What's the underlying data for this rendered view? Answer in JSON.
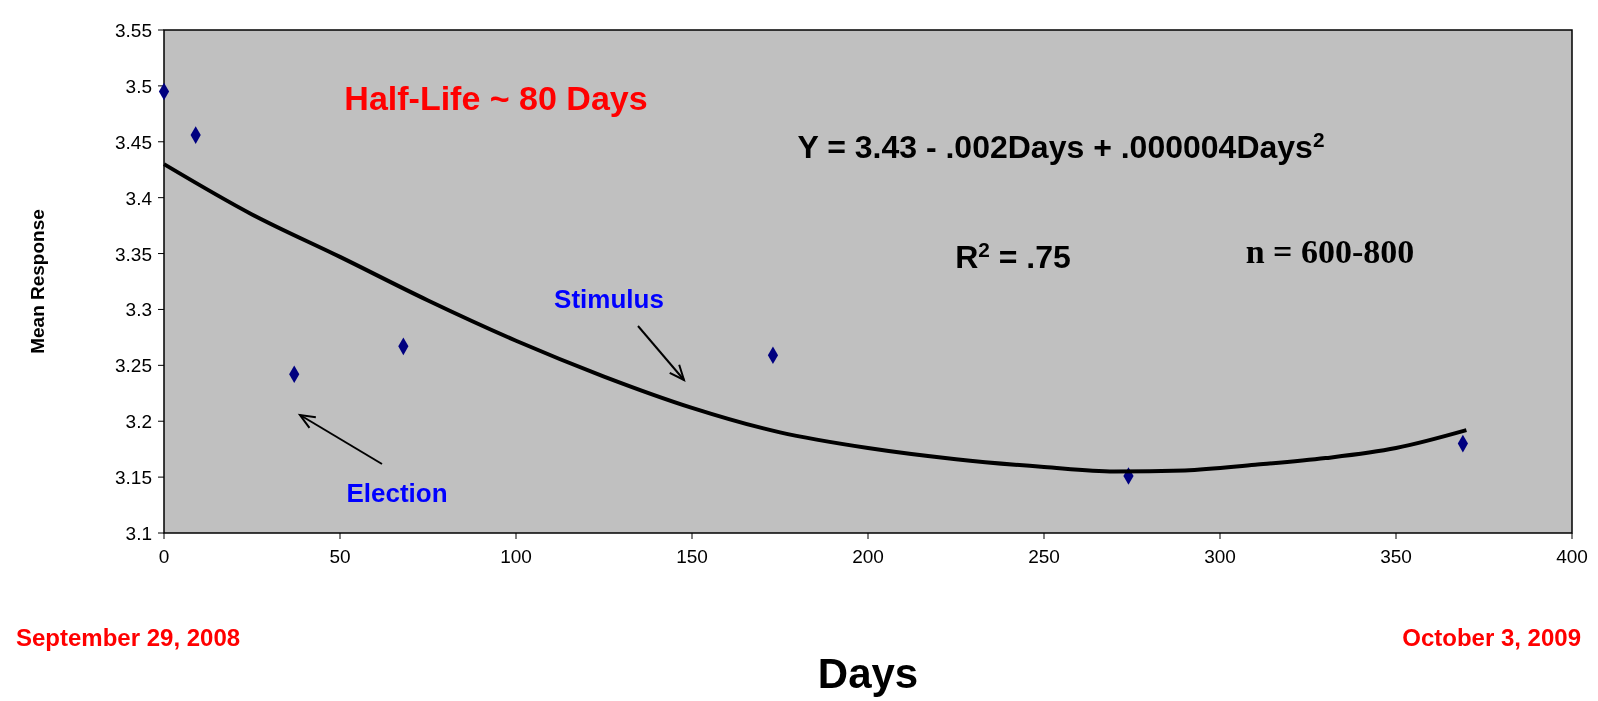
{
  "chart_data": {
    "type": "scatter",
    "xlabel": "Days",
    "ylabel": "Mean Response",
    "xlim": [
      0,
      400
    ],
    "xticks": [
      0,
      50,
      100,
      150,
      200,
      250,
      300,
      350,
      400
    ],
    "ylim": [
      3.1,
      3.55
    ],
    "yticks": [
      3.1,
      3.15,
      3.2,
      3.25,
      3.3,
      3.35,
      3.4,
      3.45,
      3.5,
      3.55
    ],
    "grid": false,
    "marker": "diamond",
    "series": [
      {
        "color": "#000080",
        "x": [
          0,
          9,
          37,
          68,
          173,
          274,
          369
        ],
        "values": [
          3.495,
          3.456,
          3.242,
          3.267,
          3.259,
          3.151,
          3.18
        ]
      },
      {
        "type": "line",
        "color": "#000000",
        "marker": "none",
        "x": [
          0,
          25,
          50,
          75,
          100,
          125,
          150,
          175,
          200,
          225,
          250,
          270,
          290,
          310,
          330,
          350,
          370
        ],
        "values": [
          3.43,
          3.385,
          3.347,
          3.308,
          3.272,
          3.24,
          3.212,
          3.19,
          3.176,
          3.166,
          3.159,
          3.155,
          3.156,
          3.161,
          3.167,
          3.176,
          3.192
        ]
      }
    ],
    "annotations": [
      "Half-Life ~ 80 Days",
      "Y = 3.43 - .002Days + .000004Days$^{2}$",
      "R$^{2}$ = .75",
      "n = 600-800",
      "Stimulus",
      "Election",
      "September 29, 2008",
      "October 3, 2009"
    ]
  }
}
